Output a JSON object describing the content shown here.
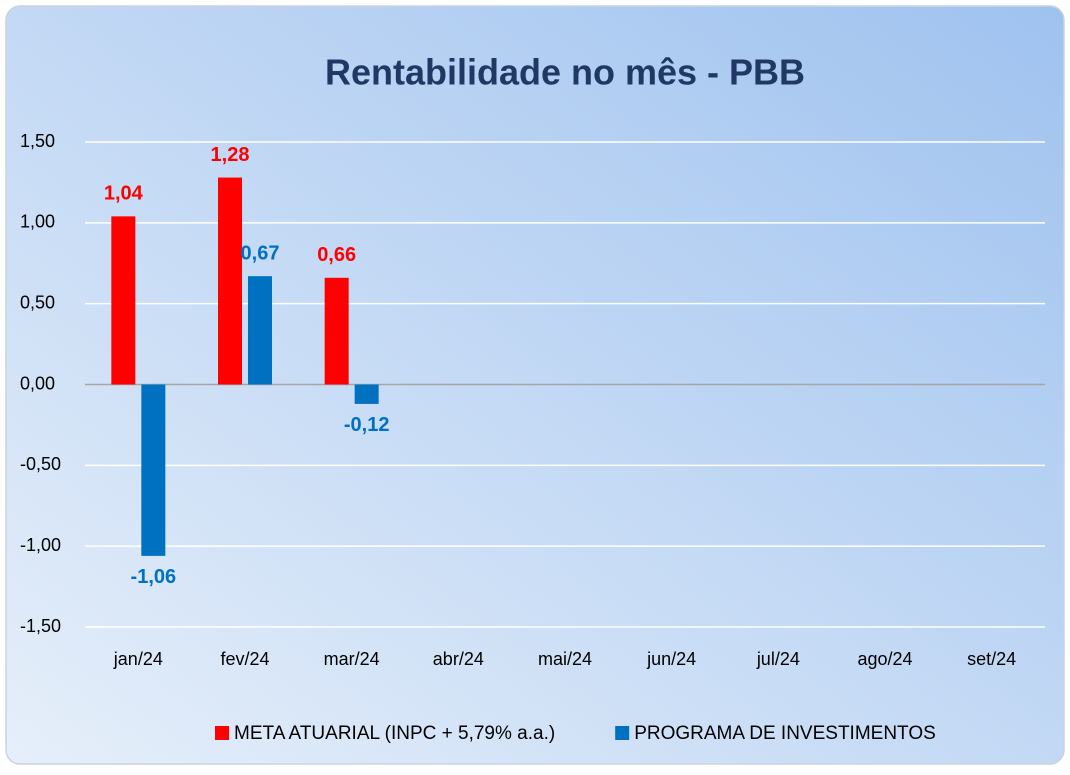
{
  "chart_data": {
    "type": "bar",
    "title": "Rentabilidade no mês - PBB",
    "categories": [
      "jan/24",
      "fev/24",
      "mar/24",
      "abr/24",
      "mai/24",
      "jun/24",
      "jul/24",
      "ago/24",
      "set/24"
    ],
    "series": [
      {
        "name": "META ATUARIAL (INPC + 5,79% a.a.)",
        "color": "#ff0000",
        "values": [
          1.04,
          1.28,
          0.66,
          null,
          null,
          null,
          null,
          null,
          null
        ],
        "value_labels": [
          "1,04",
          "1,28",
          "0,66",
          null,
          null,
          null,
          null,
          null,
          null
        ]
      },
      {
        "name": "PROGRAMA DE INVESTIMENTOS",
        "color": "#0070c0",
        "values": [
          -1.06,
          0.67,
          -0.12,
          null,
          null,
          null,
          null,
          null,
          null
        ],
        "value_labels": [
          "-1,06",
          "0,67",
          "-0,12",
          null,
          null,
          null,
          null,
          null,
          null
        ]
      }
    ],
    "ylim": [
      -1.5,
      1.5
    ],
    "yticks": [
      {
        "value": -1.5,
        "label": "-1,50"
      },
      {
        "value": -1,
        "label": "-1,00"
      },
      {
        "value": -0.5,
        "label": "-0,50"
      },
      {
        "value": 0,
        "label": "0,00"
      },
      {
        "value": 0.5,
        "label": "0,50"
      },
      {
        "value": 1,
        "label": "1,00"
      },
      {
        "value": 1.5,
        "label": "1,50"
      }
    ],
    "grid": true,
    "legend": "bottom"
  }
}
